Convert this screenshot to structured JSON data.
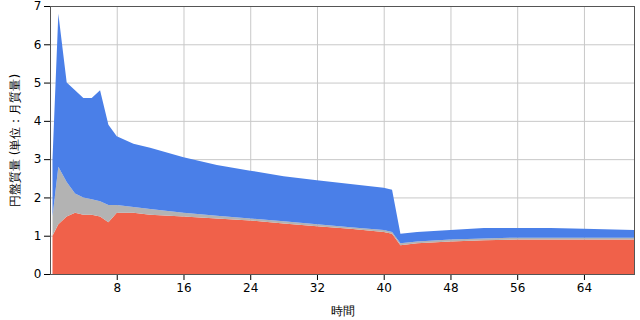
{
  "chart_data": {
    "type": "area",
    "stacked": true,
    "x_label": "時間",
    "y_label": "円盤質量 (単位：月質量)",
    "x": [
      0.3,
      1,
      2,
      3,
      4,
      5,
      6,
      7,
      8,
      10,
      12,
      16,
      20,
      24,
      28,
      32,
      36,
      40,
      41,
      42,
      44,
      48,
      52,
      56,
      60,
      64,
      70
    ],
    "series": [
      {
        "color": "#f0614a",
        "values": [
          1.0,
          1.3,
          1.5,
          1.6,
          1.55,
          1.55,
          1.5,
          1.35,
          1.6,
          1.6,
          1.55,
          1.5,
          1.45,
          1.4,
          1.32,
          1.25,
          1.18,
          1.1,
          1.05,
          0.75,
          0.8,
          0.85,
          0.88,
          0.9,
          0.9,
          0.9,
          0.9
        ]
      },
      {
        "color": "#b3b3b3",
        "values": [
          0.5,
          1.5,
          0.9,
          0.5,
          0.45,
          0.4,
          0.4,
          0.45,
          0.2,
          0.15,
          0.15,
          0.1,
          0.07,
          0.05,
          0.06,
          0.05,
          0.04,
          0.05,
          0.05,
          0.05,
          0.05,
          0.05,
          0.05,
          0.05,
          0.05,
          0.05,
          0.05
        ]
      },
      {
        "color": "#4a7fe8",
        "values": [
          1.5,
          4.0,
          2.6,
          2.7,
          2.6,
          2.65,
          2.9,
          2.1,
          1.8,
          1.65,
          1.6,
          1.45,
          1.33,
          1.25,
          1.17,
          1.15,
          1.13,
          1.1,
          1.1,
          0.25,
          0.25,
          0.25,
          0.27,
          0.25,
          0.25,
          0.23,
          0.2
        ]
      }
    ],
    "xlim": [
      0,
      70
    ],
    "xticks": [
      8,
      16,
      24,
      32,
      40,
      48,
      56,
      64
    ],
    "ylim": [
      0,
      7
    ],
    "yticks": [
      0,
      1,
      2,
      3,
      4,
      5,
      6,
      7
    ],
    "grid": true
  }
}
